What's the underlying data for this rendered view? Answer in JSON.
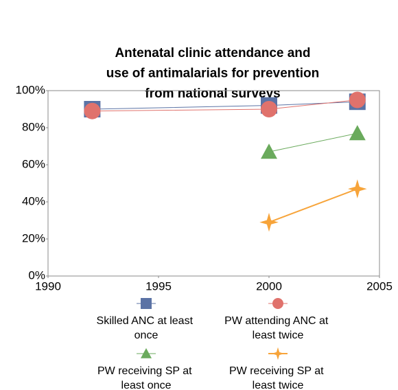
{
  "chart_data": {
    "type": "line",
    "title": [
      "Antenatal clinic attendance and",
      "use of antimalarials for prevention",
      "from national surveys"
    ],
    "x": [
      1992,
      2000,
      2004
    ],
    "series": [
      {
        "name": "Skilled ANC at least once",
        "color": "#5b73a5",
        "marker": "square",
        "values": [
          90,
          92,
          94
        ]
      },
      {
        "name": "PW attending ANC at least twice",
        "color": "#e0726c",
        "marker": "circle",
        "values": [
          89,
          90,
          95
        ]
      },
      {
        "name": "PW receiving SP at least once",
        "color": "#6aaa5c",
        "marker": "triangle",
        "values": [
          null,
          67,
          77
        ]
      },
      {
        "name": "PW receiving SP at least twice",
        "color": "#f7a43a",
        "marker": "star",
        "values": [
          null,
          29,
          47
        ]
      }
    ],
    "xlim": [
      1990,
      2005
    ],
    "xticks": [
      1990,
      1995,
      2000,
      2005
    ],
    "ylim": [
      0,
      100
    ],
    "yticks": [
      {
        "value": 0,
        "label": "0%"
      },
      {
        "value": 20,
        "label": "20%"
      },
      {
        "value": 40,
        "label": "40%"
      },
      {
        "value": 60,
        "label": "60%"
      },
      {
        "value": 80,
        "label": "80%"
      },
      {
        "value": 100,
        "label": "100%"
      }
    ],
    "grid": false
  }
}
